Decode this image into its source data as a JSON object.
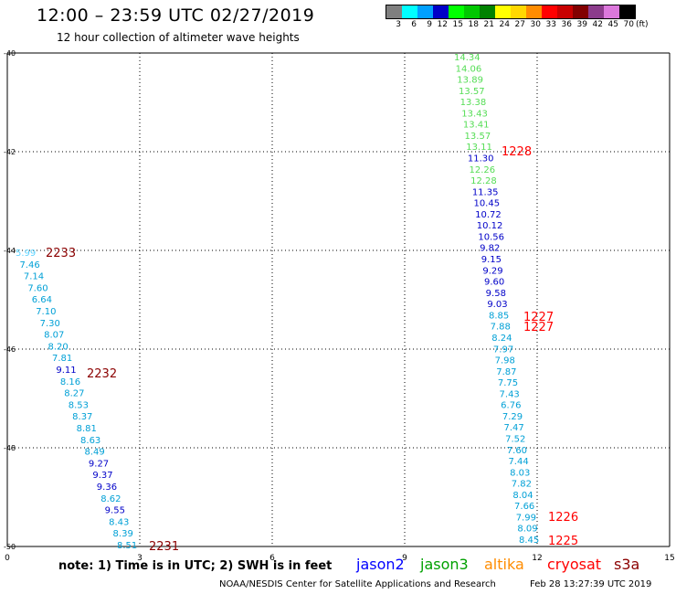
{
  "header": {
    "title": "12:00 – 23:59 UTC 02/27/2019",
    "subtitle": "12 hour collection of altimeter wave heights"
  },
  "legend": {
    "unit": "(ft)",
    "bins": [
      {
        "label": "3",
        "color": "#7f7f7f"
      },
      {
        "label": "6",
        "color": "#00ffff"
      },
      {
        "label": "9",
        "color": "#00a0ff"
      },
      {
        "label": "12",
        "color": "#0000c8"
      },
      {
        "label": "15",
        "color": "#00ff00"
      },
      {
        "label": "18",
        "color": "#00c800"
      },
      {
        "label": "21",
        "color": "#008200"
      },
      {
        "label": "24",
        "color": "#ffff00"
      },
      {
        "label": "27",
        "color": "#ffd700"
      },
      {
        "label": "30",
        "color": "#ff8c00"
      },
      {
        "label": "33",
        "color": "#ff0000"
      },
      {
        "label": "36",
        "color": "#c80000"
      },
      {
        "label": "39",
        "color": "#820000"
      },
      {
        "label": "42",
        "color": "#8c3c8c"
      },
      {
        "label": "45",
        "color": "#dc78dc"
      },
      {
        "label": "70",
        "color": "#000000"
      }
    ]
  },
  "axes": {
    "x_ticks": [
      "0",
      "3",
      "6",
      "9",
      "12",
      "15"
    ],
    "y_ticks": [
      "-40",
      "-42",
      "-44",
      "-46",
      "-48",
      "-50"
    ]
  },
  "tracks": [
    {
      "name": "track-2233",
      "label": "2233",
      "label_color": "#8b0000",
      "points": [
        {
          "v": "5.99",
          "c": "#5fd3ff"
        },
        {
          "v": "7.46",
          "c": "#00a0d6"
        },
        {
          "v": "7.14",
          "c": "#00a0d6"
        },
        {
          "v": "7.60",
          "c": "#00a0d6"
        },
        {
          "v": "6.64",
          "c": "#00a0d6"
        },
        {
          "v": "7.10",
          "c": "#00a0d6"
        },
        {
          "v": "7.30",
          "c": "#00a0d6"
        },
        {
          "v": "8.07",
          "c": "#00a0d6"
        },
        {
          "v": "8.20",
          "c": "#00a0d6"
        },
        {
          "v": "7.81",
          "c": "#00a0d6"
        },
        {
          "v": "9.11",
          "c": "#0000c8"
        },
        {
          "v": "8.16",
          "c": "#00a0d6"
        },
        {
          "v": "8.27",
          "c": "#00a0d6"
        },
        {
          "v": "8.53",
          "c": "#00a0d6"
        },
        {
          "v": "8.37",
          "c": "#00a0d6"
        },
        {
          "v": "8.81",
          "c": "#00a0d6"
        },
        {
          "v": "8.63",
          "c": "#00a0d6"
        },
        {
          "v": "8.49",
          "c": "#00a0d6"
        },
        {
          "v": "9.27",
          "c": "#0000c8"
        },
        {
          "v": "9.37",
          "c": "#0000c8"
        },
        {
          "v": "9.36",
          "c": "#0000c8"
        },
        {
          "v": "8.62",
          "c": "#00a0d6"
        },
        {
          "v": "9.55",
          "c": "#0000c8"
        },
        {
          "v": "8.43",
          "c": "#00a0d6"
        },
        {
          "v": "8.39",
          "c": "#00a0d6"
        },
        {
          "v": "8.51",
          "c": "#00a0d6"
        }
      ]
    },
    {
      "name": "track-1228",
      "label": "1228",
      "label_color": "#ff0000",
      "points": [
        {
          "v": "14.34",
          "c": "#55dd55"
        },
        {
          "v": "14.06",
          "c": "#55dd55"
        },
        {
          "v": "13.89",
          "c": "#55dd55"
        },
        {
          "v": "13.57",
          "c": "#55dd55"
        },
        {
          "v": "13.38",
          "c": "#55dd55"
        },
        {
          "v": "13.43",
          "c": "#55dd55"
        },
        {
          "v": "13.41",
          "c": "#55dd55"
        },
        {
          "v": "13.57",
          "c": "#55dd55"
        },
        {
          "v": "13.11",
          "c": "#55dd55"
        },
        {
          "v": "11.30",
          "c": "#0000c8"
        },
        {
          "v": "12.26",
          "c": "#55dd55"
        },
        {
          "v": "12.28",
          "c": "#55dd55"
        },
        {
          "v": "11.35",
          "c": "#0000c8"
        },
        {
          "v": "10.45",
          "c": "#0000c8"
        },
        {
          "v": "10.72",
          "c": "#0000c8"
        },
        {
          "v": "10.12",
          "c": "#0000c8"
        },
        {
          "v": "10.56",
          "c": "#0000c8"
        },
        {
          "v": "9.82",
          "c": "#0000c8"
        },
        {
          "v": "9.15",
          "c": "#0000c8"
        },
        {
          "v": "9.29",
          "c": "#0000c8"
        },
        {
          "v": "9.60",
          "c": "#0000c8"
        },
        {
          "v": "9.58",
          "c": "#0000c8"
        },
        {
          "v": "9.03",
          "c": "#0000c8"
        },
        {
          "v": "8.85",
          "c": "#00a0d6"
        },
        {
          "v": "7.88",
          "c": "#00a0d6"
        },
        {
          "v": "8.24",
          "c": "#00a0d6"
        },
        {
          "v": "7.97",
          "c": "#00a0d6"
        },
        {
          "v": "7.98",
          "c": "#00a0d6"
        },
        {
          "v": "7.87",
          "c": "#00a0d6"
        },
        {
          "v": "7.75",
          "c": "#00a0d6"
        },
        {
          "v": "7.43",
          "c": "#00a0d6"
        },
        {
          "v": "6.76",
          "c": "#00a0d6"
        },
        {
          "v": "7.29",
          "c": "#00a0d6"
        },
        {
          "v": "7.47",
          "c": "#00a0d6"
        },
        {
          "v": "7.52",
          "c": "#00a0d6"
        },
        {
          "v": "7.60",
          "c": "#00a0d6"
        },
        {
          "v": "7.44",
          "c": "#00a0d6"
        },
        {
          "v": "8.03",
          "c": "#00a0d6"
        },
        {
          "v": "7.82",
          "c": "#00a0d6"
        },
        {
          "v": "8.04",
          "c": "#00a0d6"
        },
        {
          "v": "7.66",
          "c": "#00a0d6"
        },
        {
          "v": "7.99",
          "c": "#00a0d6"
        },
        {
          "v": "8.09",
          "c": "#00a0d6"
        },
        {
          "v": "8.45",
          "c": "#00a0d6"
        }
      ]
    }
  ],
  "track_labels": [
    {
      "text": "2233",
      "color": "#8b0000"
    },
    {
      "text": "2232",
      "color": "#8b0000"
    },
    {
      "text": "2231",
      "color": "#8b0000"
    },
    {
      "text": "1228",
      "color": "#ff0000"
    },
    {
      "text": "1227",
      "color": "#ff0000"
    },
    {
      "text": "1227",
      "color": "#ff0000"
    },
    {
      "text": "1226",
      "color": "#ff0000"
    },
    {
      "text": "1225",
      "color": "#ff0000"
    }
  ],
  "footer": {
    "note": "note:  1) Time is in UTC;  2) SWH is in feet",
    "satellites": [
      {
        "name": "jason2",
        "color": "#0000ff"
      },
      {
        "name": "jason3",
        "color": "#00a000"
      },
      {
        "name": "altika",
        "color": "#ff8c00"
      },
      {
        "name": "cryosat",
        "color": "#ff0000"
      },
      {
        "name": "s3a",
        "color": "#8b0000"
      }
    ],
    "credit": "NOAA/NESDIS Center for Satellite Applications and Research",
    "timestamp": "Feb 28 13:27:39 UTC 2019"
  }
}
